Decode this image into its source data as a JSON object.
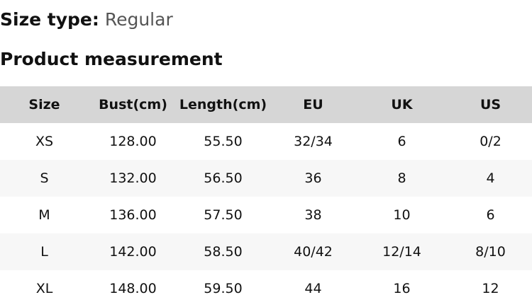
{
  "size_type": {
    "label": "Size type:",
    "value": "Regular"
  },
  "section_title": "Product measurement",
  "table": {
    "headers": [
      "Size",
      "Bust(cm)",
      "Length(cm)",
      "EU",
      "UK",
      "US"
    ],
    "rows": [
      [
        "XS",
        "128.00",
        "55.50",
        "32/34",
        "6",
        "0/2"
      ],
      [
        "S",
        "132.00",
        "56.50",
        "36",
        "8",
        "4"
      ],
      [
        "M",
        "136.00",
        "57.50",
        "38",
        "10",
        "6"
      ],
      [
        "L",
        "142.00",
        "58.50",
        "40/42",
        "12/14",
        "8/10"
      ],
      [
        "XL",
        "148.00",
        "59.50",
        "44",
        "16",
        "12"
      ]
    ]
  },
  "colors": {
    "header_bg": "#d6d6d6",
    "alt_row_bg": "#f7f7f7",
    "value_text": "#555555"
  }
}
